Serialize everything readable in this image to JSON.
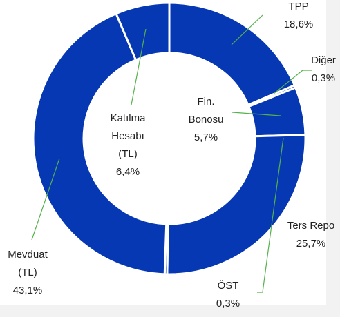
{
  "chart_data": {
    "type": "donut",
    "categories": [
      "TPP",
      "Diğer",
      "Fin. Bonosu",
      "Ters Repo",
      "ÖST",
      "Mevduat (TL)",
      "Katılma Hesabı (TL)"
    ],
    "values": [
      18.6,
      0.3,
      5.7,
      25.7,
      0.3,
      43.1,
      6.4
    ],
    "value_labels": [
      "18,6%",
      "0,3%",
      "5,7%",
      "25,7%",
      "0,3%",
      "43,1%",
      "6,4%"
    ],
    "color": "#0638b4"
  }
}
